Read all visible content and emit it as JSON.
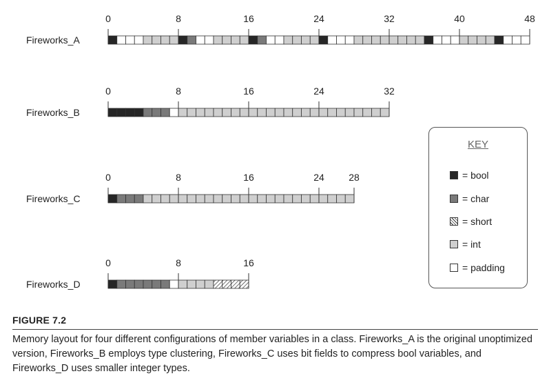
{
  "diagram": {
    "rows": [
      {
        "label": "Fireworks_A",
        "ticks": [
          "0",
          "8",
          "16",
          "24",
          "32",
          "40",
          "48"
        ],
        "tick_values": [
          0,
          8,
          16,
          24,
          32,
          40,
          48
        ],
        "cells": [
          "bool",
          "padding",
          "padding",
          "padding",
          "int",
          "int",
          "int",
          "int",
          "bool",
          "char",
          "padding",
          "padding",
          "int",
          "int",
          "int",
          "int",
          "bool",
          "char",
          "padding",
          "padding",
          "int",
          "int",
          "int",
          "int",
          "bool",
          "padding",
          "padding",
          "padding",
          "int",
          "int",
          "int",
          "int",
          "int",
          "int",
          "int",
          "int",
          "bool",
          "padding",
          "padding",
          "padding",
          "int",
          "int",
          "int",
          "int",
          "bool",
          "padding",
          "padding",
          "padding"
        ]
      },
      {
        "label": "Fireworks_B",
        "ticks": [
          "0",
          "8",
          "16",
          "24",
          "32"
        ],
        "tick_values": [
          0,
          8,
          16,
          24,
          32
        ],
        "cells": [
          "bool",
          "bool",
          "bool",
          "bool",
          "char",
          "char",
          "char",
          "padding",
          "int",
          "int",
          "int",
          "int",
          "int",
          "int",
          "int",
          "int",
          "int",
          "int",
          "int",
          "int",
          "int",
          "int",
          "int",
          "int",
          "int",
          "int",
          "int",
          "int",
          "int",
          "int",
          "int",
          "int"
        ]
      },
      {
        "label": "Fireworks_C",
        "ticks": [
          "0",
          "8",
          "16",
          "24",
          "28"
        ],
        "tick_values": [
          0,
          8,
          16,
          24,
          28
        ],
        "cells": [
          "bool",
          "char",
          "char",
          "char",
          "int",
          "int",
          "int",
          "int",
          "int",
          "int",
          "int",
          "int",
          "int",
          "int",
          "int",
          "int",
          "int",
          "int",
          "int",
          "int",
          "int",
          "int",
          "int",
          "int",
          "int",
          "int",
          "int",
          "int"
        ]
      },
      {
        "label": "Fireworks_D",
        "ticks": [
          "0",
          "8",
          "16"
        ],
        "tick_values": [
          0,
          8,
          16
        ],
        "cells": [
          "bool",
          "char",
          "char",
          "char",
          "char",
          "char",
          "char",
          "padding",
          "int",
          "int",
          "int",
          "int",
          "short",
          "short",
          "short",
          "short"
        ]
      }
    ]
  },
  "key": {
    "title": "KEY",
    "items": [
      {
        "type": "bool",
        "label": "= bool"
      },
      {
        "type": "char",
        "label": "= char"
      },
      {
        "type": "short",
        "label": "= short"
      },
      {
        "type": "int",
        "label": "= int"
      },
      {
        "type": "padding",
        "label": "= padding"
      }
    ]
  },
  "colors": {
    "bool": "#262626",
    "char": "#7a7a7a",
    "short": "#ffffff",
    "int": "#cfcfcf",
    "padding": "#ffffff",
    "outline": "#333333"
  },
  "caption": {
    "title": "FIGURE 7.2",
    "text": "Memory layout for four different configurations of member variables in a class. Fireworks_A is the original unoptimized version, Fireworks_B employs type clustering, Fireworks_C uses bit fields to compress bool variables, and Fireworks_D uses smaller integer types."
  }
}
